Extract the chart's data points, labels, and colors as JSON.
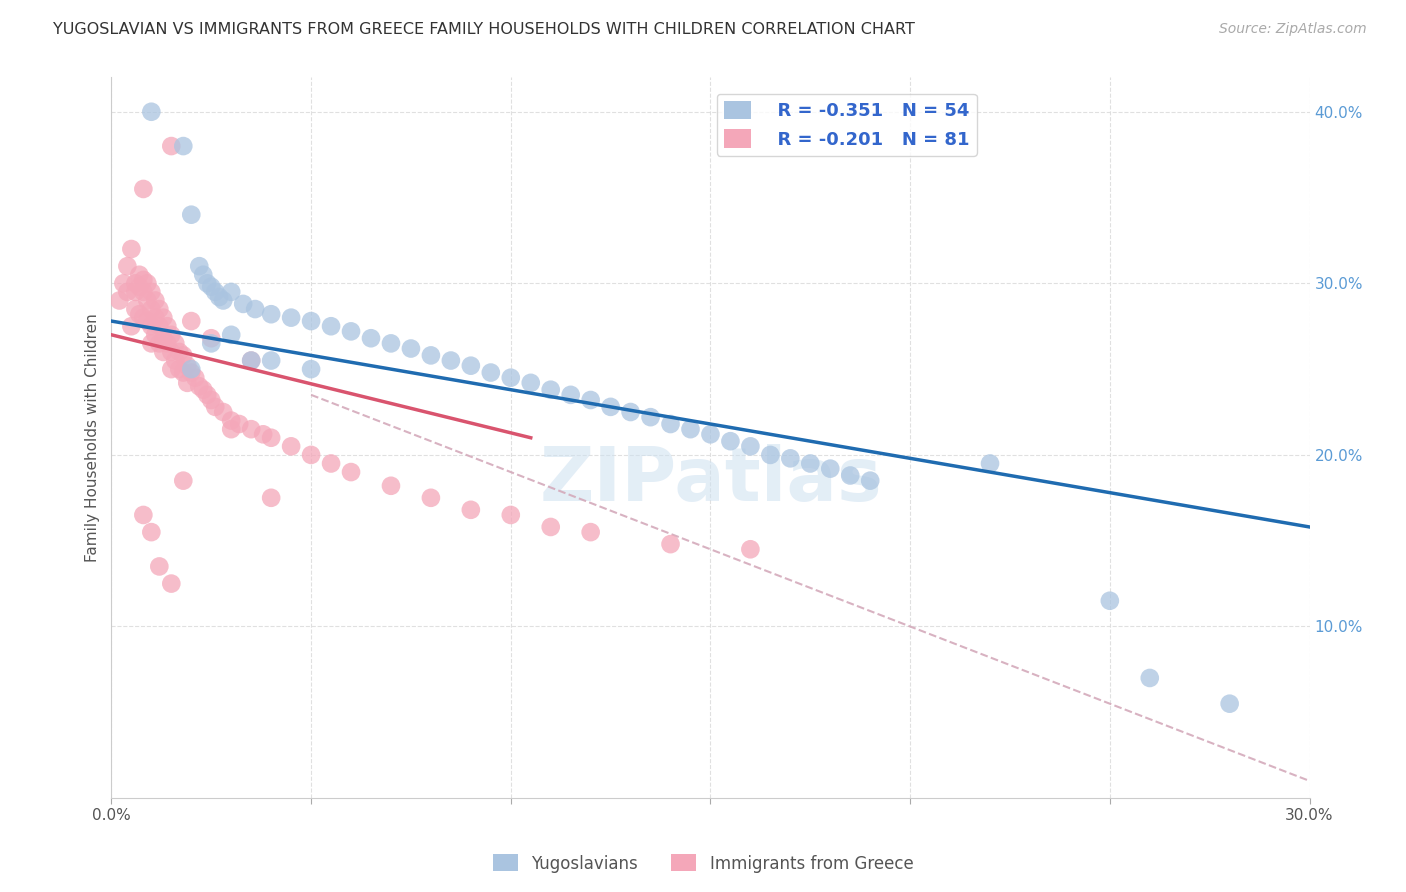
{
  "title": "YUGOSLAVIAN VS IMMIGRANTS FROM GREECE FAMILY HOUSEHOLDS WITH CHILDREN CORRELATION CHART",
  "source": "Source: ZipAtlas.com",
  "ylabel": "Family Households with Children",
  "x_min": 0.0,
  "x_max": 0.3,
  "y_min": 0.0,
  "y_max": 0.42,
  "blue_color": "#aac4e0",
  "pink_color": "#f4a7b9",
  "blue_line_color": "#1f6bb0",
  "pink_line_color": "#d9546e",
  "dashed_line_color": "#d4aabb",
  "background_color": "#ffffff",
  "grid_color": "#dddddd",
  "blue_scatter_x": [
    0.01,
    0.018,
    0.02,
    0.022,
    0.023,
    0.024,
    0.025,
    0.026,
    0.027,
    0.028,
    0.03,
    0.033,
    0.036,
    0.04,
    0.045,
    0.05,
    0.055,
    0.06,
    0.065,
    0.07,
    0.075,
    0.08,
    0.085,
    0.09,
    0.095,
    0.1,
    0.105,
    0.11,
    0.115,
    0.12,
    0.125,
    0.13,
    0.135,
    0.14,
    0.145,
    0.15,
    0.155,
    0.16,
    0.165,
    0.17,
    0.175,
    0.18,
    0.185,
    0.19,
    0.02,
    0.025,
    0.03,
    0.035,
    0.04,
    0.05,
    0.22,
    0.25,
    0.26,
    0.28
  ],
  "blue_scatter_y": [
    0.4,
    0.38,
    0.34,
    0.31,
    0.305,
    0.3,
    0.298,
    0.295,
    0.292,
    0.29,
    0.295,
    0.288,
    0.285,
    0.282,
    0.28,
    0.278,
    0.275,
    0.272,
    0.268,
    0.265,
    0.262,
    0.258,
    0.255,
    0.252,
    0.248,
    0.245,
    0.242,
    0.238,
    0.235,
    0.232,
    0.228,
    0.225,
    0.222,
    0.218,
    0.215,
    0.212,
    0.208,
    0.205,
    0.2,
    0.198,
    0.195,
    0.192,
    0.188,
    0.185,
    0.25,
    0.265,
    0.27,
    0.255,
    0.255,
    0.25,
    0.195,
    0.115,
    0.07,
    0.055
  ],
  "pink_scatter_x": [
    0.002,
    0.003,
    0.004,
    0.004,
    0.005,
    0.005,
    0.006,
    0.006,
    0.006,
    0.007,
    0.007,
    0.007,
    0.008,
    0.008,
    0.008,
    0.009,
    0.009,
    0.009,
    0.01,
    0.01,
    0.01,
    0.01,
    0.011,
    0.011,
    0.011,
    0.012,
    0.012,
    0.012,
    0.013,
    0.013,
    0.013,
    0.014,
    0.014,
    0.015,
    0.015,
    0.015,
    0.016,
    0.016,
    0.017,
    0.017,
    0.018,
    0.018,
    0.019,
    0.019,
    0.02,
    0.021,
    0.022,
    0.023,
    0.024,
    0.025,
    0.026,
    0.028,
    0.03,
    0.032,
    0.035,
    0.038,
    0.04,
    0.045,
    0.05,
    0.055,
    0.06,
    0.07,
    0.08,
    0.09,
    0.1,
    0.11,
    0.12,
    0.14,
    0.16,
    0.008,
    0.01,
    0.012,
    0.015,
    0.018,
    0.02,
    0.025,
    0.03,
    0.035,
    0.04,
    0.015,
    0.008
  ],
  "pink_scatter_y": [
    0.29,
    0.3,
    0.295,
    0.31,
    0.275,
    0.32,
    0.3,
    0.295,
    0.285,
    0.305,
    0.298,
    0.282,
    0.302,
    0.295,
    0.28,
    0.3,
    0.29,
    0.278,
    0.295,
    0.285,
    0.275,
    0.265,
    0.29,
    0.28,
    0.27,
    0.285,
    0.275,
    0.265,
    0.28,
    0.268,
    0.26,
    0.275,
    0.265,
    0.27,
    0.26,
    0.25,
    0.265,
    0.255,
    0.26,
    0.25,
    0.258,
    0.248,
    0.252,
    0.242,
    0.248,
    0.245,
    0.24,
    0.238,
    0.235,
    0.232,
    0.228,
    0.225,
    0.22,
    0.218,
    0.215,
    0.212,
    0.21,
    0.205,
    0.2,
    0.195,
    0.19,
    0.182,
    0.175,
    0.168,
    0.165,
    0.158,
    0.155,
    0.148,
    0.145,
    0.165,
    0.155,
    0.135,
    0.125,
    0.185,
    0.278,
    0.268,
    0.215,
    0.255,
    0.175,
    0.38,
    0.355
  ]
}
